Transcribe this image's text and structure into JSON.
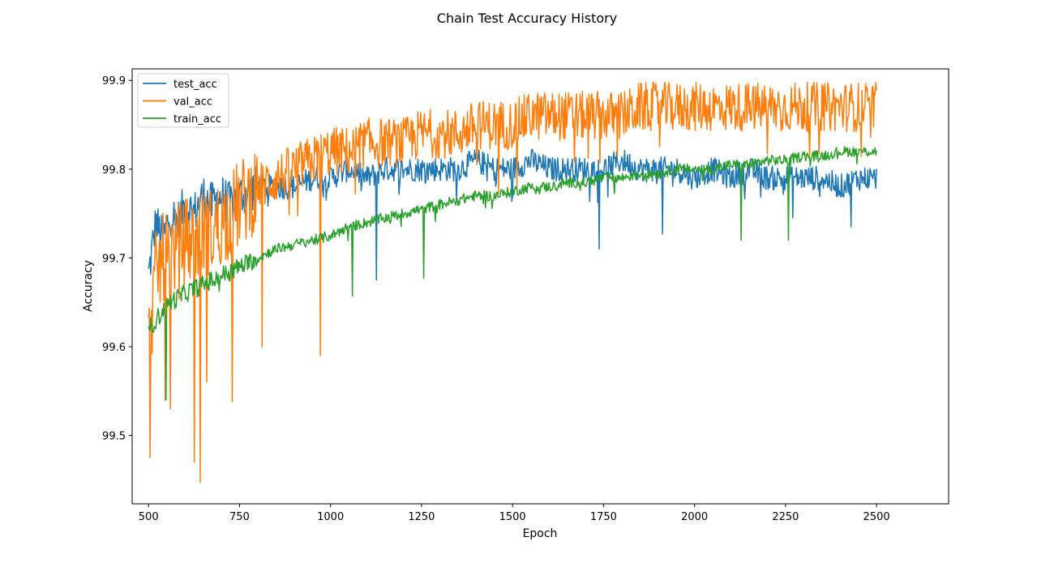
{
  "chart_data": {
    "type": "line",
    "title": "Chain Test Accuracy History",
    "xlabel": "Epoch",
    "ylabel": "Accuracy",
    "xlim": [
      450,
      2700
    ],
    "ylim": [
      99.423,
      99.913
    ],
    "xticks": [
      500,
      750,
      1000,
      1250,
      1500,
      1750,
      2000,
      2250,
      2500
    ],
    "yticks": [
      99.5,
      99.6,
      99.7,
      99.8,
      99.9
    ],
    "grid": false,
    "legend_position": "top-left",
    "x": [
      500,
      520,
      540,
      560,
      580,
      600,
      625,
      650,
      675,
      700,
      725,
      750,
      800,
      850,
      900,
      950,
      1000,
      1050,
      1100,
      1150,
      1200,
      1250,
      1300,
      1350,
      1400,
      1450,
      1500,
      1550,
      1600,
      1650,
      1700,
      1750,
      1800,
      1850,
      1900,
      1950,
      2000,
      2050,
      2100,
      2150,
      2200,
      2250,
      2300,
      2350,
      2400,
      2450,
      2500
    ],
    "series": [
      {
        "name": "test_acc",
        "color": "#1f77b4",
        "values": [
          99.68,
          99.74,
          99.72,
          99.75,
          99.74,
          99.76,
          99.75,
          99.77,
          99.76,
          99.77,
          99.76,
          99.77,
          99.78,
          99.78,
          99.78,
          99.79,
          99.79,
          99.8,
          99.79,
          99.8,
          99.8,
          99.8,
          99.8,
          99.8,
          99.81,
          99.8,
          99.8,
          99.81,
          99.8,
          99.8,
          99.8,
          99.8,
          99.81,
          99.8,
          99.8,
          99.8,
          99.79,
          99.8,
          99.79,
          99.8,
          99.79,
          99.79,
          99.79,
          99.79,
          99.78,
          99.79,
          99.79
        ],
        "dips": [
          [
            1125,
            99.675
          ],
          [
            1737,
            99.71
          ],
          [
            1912,
            99.727
          ],
          [
            2270,
            99.745
          ],
          [
            2430,
            99.735
          ]
        ]
      },
      {
        "name": "val_acc",
        "color": "#ff7f0e",
        "values": [
          99.6,
          99.68,
          99.7,
          99.71,
          99.71,
          99.72,
          99.72,
          99.73,
          99.73,
          99.74,
          99.75,
          99.76,
          99.78,
          99.79,
          99.8,
          99.81,
          99.82,
          99.82,
          99.83,
          99.83,
          99.83,
          99.84,
          99.84,
          99.84,
          99.85,
          99.85,
          99.85,
          99.86,
          99.86,
          99.86,
          99.86,
          99.86,
          99.86,
          99.87,
          99.87,
          99.87,
          99.87,
          99.87,
          99.87,
          99.87,
          99.87,
          99.87,
          99.87,
          99.87,
          99.87,
          99.87,
          99.87
        ],
        "dips": [
          [
            503,
            99.475
          ],
          [
            545,
            99.54
          ],
          [
            560,
            99.53
          ],
          [
            625,
            99.47
          ],
          [
            642,
            99.447
          ],
          [
            660,
            99.56
          ],
          [
            730,
            99.538
          ],
          [
            972,
            99.59
          ],
          [
            812,
            99.6
          ]
        ]
      },
      {
        "name": "train_acc",
        "color": "#2ca02c",
        "values": [
          99.62,
          99.63,
          99.64,
          99.65,
          99.655,
          99.66,
          99.665,
          99.67,
          99.675,
          99.68,
          99.685,
          99.69,
          99.7,
          99.71,
          99.715,
          99.72,
          99.725,
          99.735,
          99.74,
          99.745,
          99.75,
          99.755,
          99.76,
          99.765,
          99.77,
          99.77,
          99.775,
          99.78,
          99.78,
          99.785,
          99.785,
          99.79,
          99.79,
          99.795,
          99.795,
          99.8,
          99.8,
          99.8,
          99.805,
          99.805,
          99.81,
          99.81,
          99.815,
          99.815,
          99.82,
          99.82,
          99.82
        ],
        "dips": [
          [
            548,
            99.54
          ],
          [
            1060,
            99.657
          ],
          [
            1255,
            99.677
          ],
          [
            2128,
            99.72
          ],
          [
            2258,
            99.72
          ]
        ]
      }
    ]
  }
}
